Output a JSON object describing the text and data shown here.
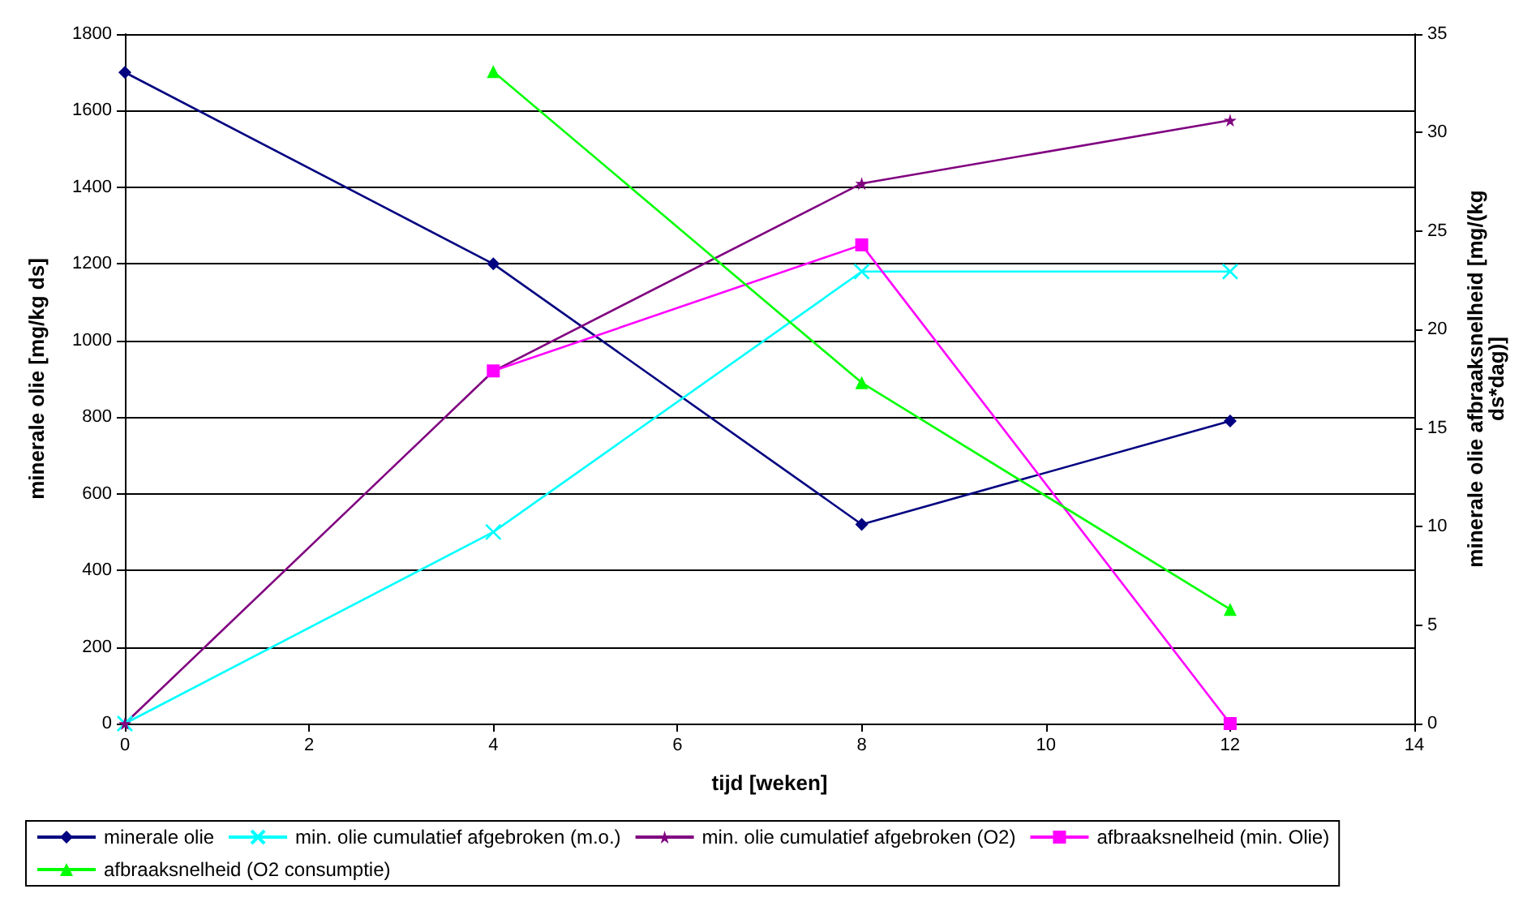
{
  "chart_data": {
    "type": "line",
    "xlabel": "tijd [weken]",
    "ylabel": "minerale olie [mg/kg ds]",
    "y2label": "minerale olie afbraaksnelheid [mg/(kg\nds*dag)]",
    "xlim": [
      0,
      14
    ],
    "xticks": [
      0,
      2,
      4,
      6,
      8,
      10,
      12,
      14
    ],
    "ylim": [
      0,
      1800
    ],
    "yticks": [
      0,
      200,
      400,
      600,
      800,
      1000,
      1200,
      1400,
      1600,
      1800
    ],
    "y2lim": [
      0,
      35
    ],
    "y2ticks": [
      0,
      5,
      10,
      15,
      20,
      25,
      30,
      35
    ],
    "grid": "y",
    "legend": "bottom",
    "line_style": "solid",
    "series": [
      {
        "name": "minerale olie",
        "color": "#000080",
        "marker": "diamond",
        "x": [
          0,
          4,
          8,
          12
        ],
        "values": [
          1700,
          1200,
          520,
          790
        ]
      },
      {
        "name": "min. olie cumulatief afgebroken (m.o.)",
        "color": "#00ffff",
        "marker": "cross",
        "x": [
          0,
          4,
          8,
          12
        ],
        "values": [
          0,
          500,
          1180,
          1180
        ]
      },
      {
        "name": "min. olie cumulatief afgebroken (O2)",
        "color": "#800080",
        "marker": "star",
        "x": [
          0,
          4,
          8,
          12
        ],
        "values": [
          0,
          920,
          1410,
          1575
        ]
      },
      {
        "name": "afbraaksnelheid (min. Olie)",
        "color": "#ff00ff",
        "marker": "square",
        "axis": "y2",
        "x": [
          4,
          8,
          12
        ],
        "values": [
          17.9,
          24.3,
          0
        ]
      },
      {
        "name": "afbraaksnelheid (O2 consumptie)",
        "color": "#00ff00",
        "marker": "triangle",
        "axis": "y2",
        "x": [
          4,
          8,
          12
        ],
        "values": [
          33.1,
          17.3,
          5.8
        ]
      }
    ]
  }
}
